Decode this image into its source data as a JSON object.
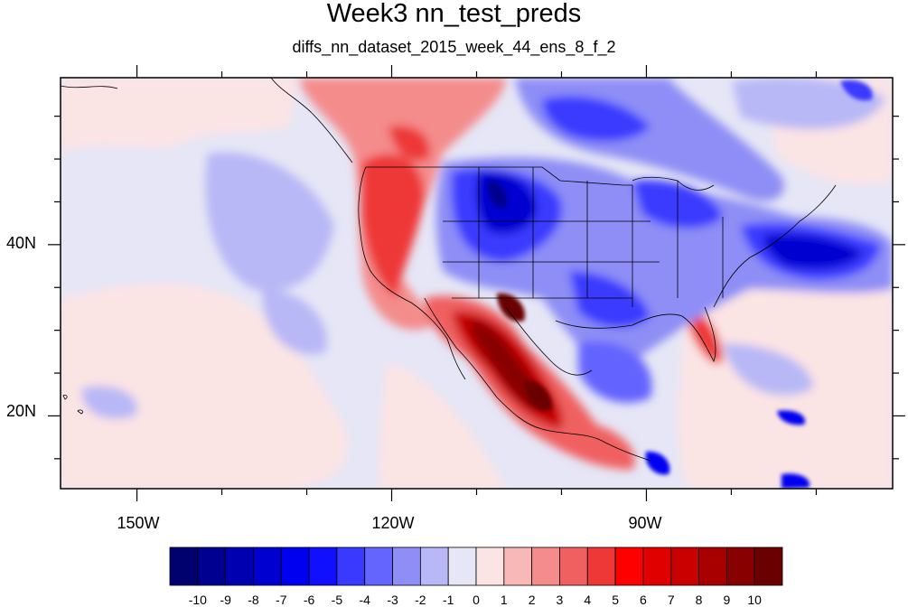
{
  "title": "Week3 nn_test_preds",
  "subtitle": "diffs_nn_dataset_2015_week_44_ens_8_f_2",
  "lon_ticks": [
    {
      "value": -150,
      "label": "150W"
    },
    {
      "value": -120,
      "label": "120W"
    },
    {
      "value": -90,
      "label": "90W"
    }
  ],
  "lat_ticks": [
    {
      "value": 40,
      "label": "40N"
    },
    {
      "value": 20,
      "label": "20N"
    }
  ],
  "extent": {
    "lon_min": -159,
    "lon_max": -61,
    "lat_min": 11.5,
    "lat_max": 59.5
  },
  "colorbar": {
    "levels": [
      "-10",
      "-9",
      "-8",
      "-7",
      "-6",
      "-5",
      "-4",
      "-3",
      "-2",
      "-1",
      "0",
      "1",
      "2",
      "3",
      "4",
      "5",
      "6",
      "7",
      "8",
      "9",
      "10"
    ],
    "colors": [
      "#00006e",
      "#000090",
      "#0000b0",
      "#0000d0",
      "#0000f0",
      "#1010ff",
      "#3a3aff",
      "#6464ff",
      "#8e8ef6",
      "#b8b8f6",
      "#e6e6f6",
      "#fbe4e4",
      "#f8b8b8",
      "#f48c8c",
      "#f06060",
      "#ee3838",
      "#ff0000",
      "#e00000",
      "#c80000",
      "#a80000",
      "#880000",
      "#6a0000"
    ]
  },
  "colors": {
    "ocean_base": "#e6e6f6"
  }
}
